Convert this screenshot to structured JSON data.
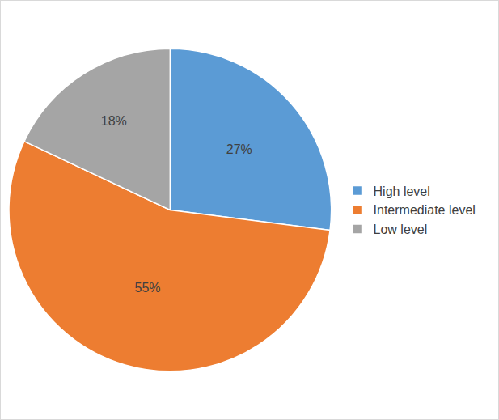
{
  "chart_data": {
    "type": "pie",
    "categories": [
      "High level",
      "Intermediate level",
      "Low level"
    ],
    "values": [
      27,
      55,
      18
    ],
    "value_labels": [
      "27%",
      "55%",
      "18%"
    ],
    "colors": [
      "#5b9bd5",
      "#ed7d31",
      "#a5a5a5"
    ],
    "data_labels": true,
    "legend": "right"
  }
}
